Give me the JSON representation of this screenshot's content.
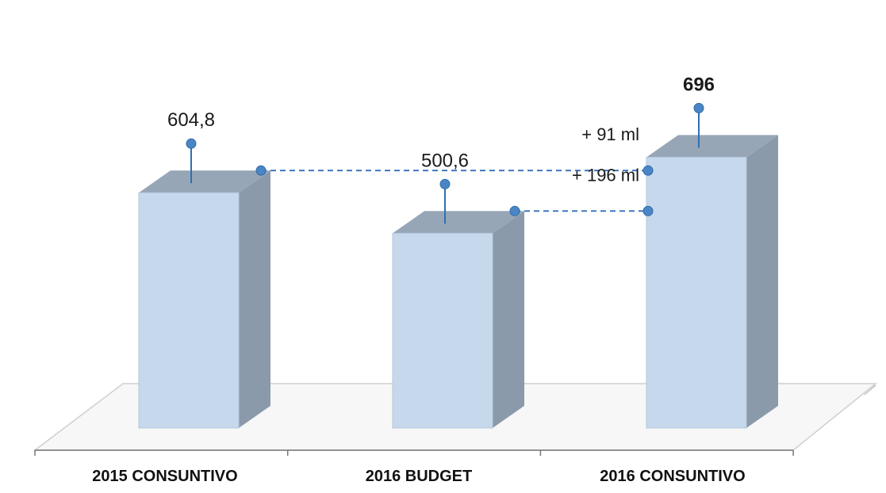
{
  "chart_data": {
    "type": "bar",
    "style": "3d-column",
    "categories": [
      "2015 Consuntivo",
      "2016 Budget",
      "2016 Consuntivo"
    ],
    "category_display": [
      "2015 CONSUNTIVO",
      "2016 BUDGET",
      "2016 CONSUNTIVO"
    ],
    "values": [
      604.8,
      500.6,
      696
    ],
    "value_labels": [
      "604,8",
      "500,6",
      "696"
    ],
    "highlight_index": 2,
    "annotations": [
      {
        "label": "+ 91 ml",
        "from": "2015 Consuntivo",
        "to": "2016 Consuntivo"
      },
      {
        "label": "+ 196 ml",
        "from": "2016 Budget",
        "to": "2016 Consuntivo"
      }
    ],
    "title": "",
    "xlabel": "",
    "ylabel": "",
    "ylim": [
      0,
      760
    ],
    "grid": false,
    "colors": {
      "bar_front": "#c6d8ec",
      "bar_side": "#8b9aab",
      "bar_top": "#97a6b6",
      "marker": "#4a86c5",
      "stem": "#2e6fb3",
      "connector": "#3f78c0",
      "floor_line": "#cfcfcf"
    }
  }
}
